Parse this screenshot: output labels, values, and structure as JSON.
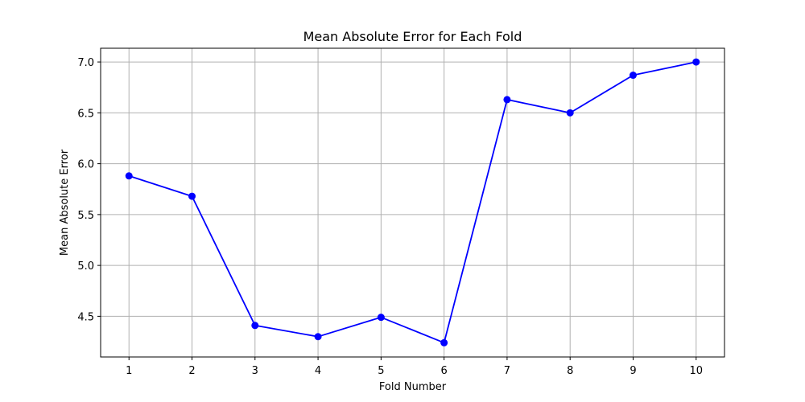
{
  "chart_data": {
    "type": "line",
    "title": "Mean Absolute Error for Each Fold",
    "xlabel": "Fold Number",
    "ylabel": "Mean Absolute Error",
    "x": [
      1,
      2,
      3,
      4,
      5,
      6,
      7,
      8,
      9,
      10
    ],
    "series": [
      {
        "values": [
          5.88,
          5.68,
          4.41,
          4.3,
          4.49,
          4.24,
          6.63,
          6.5,
          6.87,
          7.0
        ],
        "color": "#0000ff",
        "marker": "circle"
      }
    ],
    "xticks": [
      "1",
      "2",
      "3",
      "4",
      "5",
      "6",
      "7",
      "8",
      "9",
      "10"
    ],
    "yticks": [
      4.5,
      5.0,
      5.5,
      6.0,
      6.5,
      7.0
    ],
    "ytick_labels": [
      "4.5",
      "5.0",
      "5.5",
      "6.0",
      "6.5",
      "7.0"
    ],
    "xlim": [
      0.55,
      10.45
    ],
    "ylim": [
      4.1,
      7.135
    ],
    "grid": true
  }
}
